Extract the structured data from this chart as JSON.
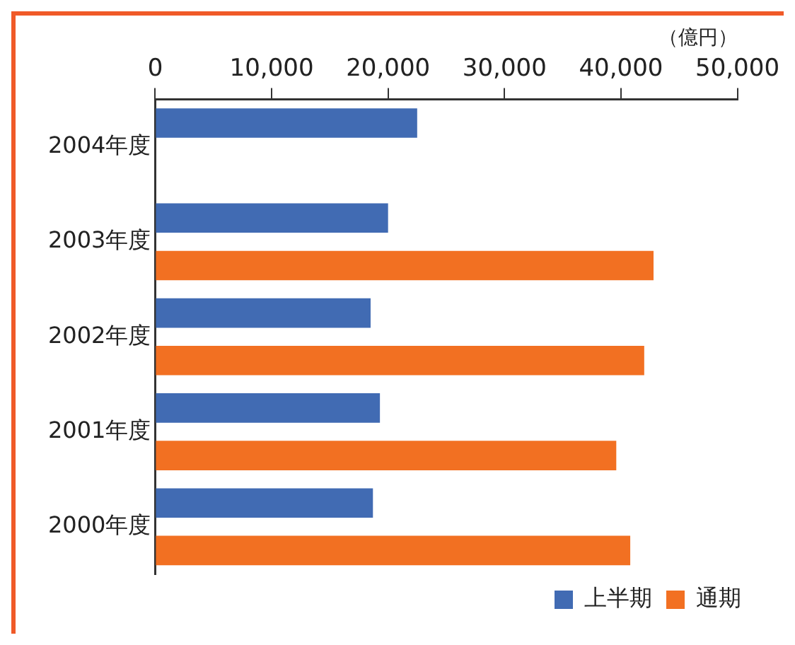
{
  "chart_data": {
    "type": "bar",
    "orientation": "horizontal",
    "xlabel": "（億円）",
    "categories": [
      "2004年度",
      "2003年度",
      "2002年度",
      "2001年度",
      "2000年度"
    ],
    "series": [
      {
        "name": "上半期",
        "color": "#416bb3",
        "values": [
          22500,
          20000,
          18500,
          19300,
          18700
        ]
      },
      {
        "name": "通期",
        "color": "#f27022",
        "values": [
          null,
          42800,
          42000,
          39600,
          40800
        ]
      }
    ],
    "xlim": [
      0,
      50000
    ],
    "xticks": [
      0,
      {
        "value": 10000,
        "label": "10,000"
      },
      {
        "value": 20000,
        "label": "20,000"
      },
      {
        "value": 30000,
        "label": "30,000"
      },
      {
        "value": 40000,
        "label": "40,000"
      },
      {
        "value": 50000,
        "label": "50,000"
      }
    ],
    "grid": false,
    "legend": "bottom right"
  }
}
